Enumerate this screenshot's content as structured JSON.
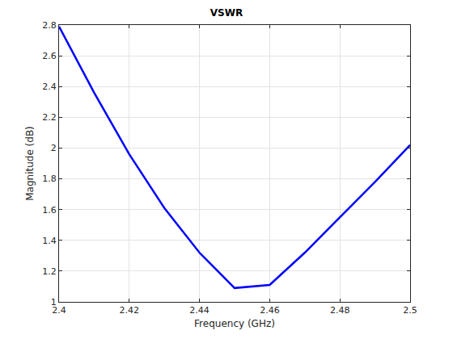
{
  "chart_data": {
    "type": "line",
    "title": "VSWR",
    "x_label": "Frequency (GHz)",
    "y_label": "Magnitude (dB)",
    "x": [
      2.4,
      2.41,
      2.42,
      2.43,
      2.44,
      2.45,
      2.46,
      2.47,
      2.48,
      2.49,
      2.5
    ],
    "values": [
      2.79,
      2.36,
      1.96,
      1.61,
      1.32,
      1.09,
      1.11,
      1.32,
      1.55,
      1.78,
      2.02
    ],
    "color": "#0000ff",
    "xlim": [
      2.4,
      2.5
    ],
    "xticks": [
      2.4,
      2.42,
      2.44,
      2.46,
      2.48,
      2.5
    ],
    "ylim": [
      1,
      2.8
    ],
    "yticks": [
      1,
      1.2,
      1.4,
      1.6,
      1.8,
      2,
      2.2,
      2.4,
      2.6,
      2.8
    ],
    "grid": true
  }
}
